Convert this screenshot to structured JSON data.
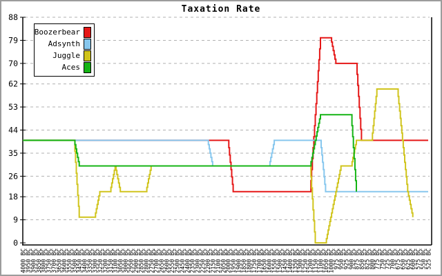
{
  "title": "Taxation Rate",
  "colors": {
    "grid": "#b0b0b0",
    "axis": "#000000",
    "background": "#ffffff",
    "frame_border": "#9c9c9c"
  },
  "chart_data": {
    "type": "line",
    "title": "Taxation Rate",
    "xlabel": "",
    "ylabel": "",
    "ylim": [
      0,
      88
    ],
    "yticks": [
      0,
      9,
      18,
      26,
      35,
      44,
      53,
      62,
      70,
      79,
      88
    ],
    "grid": true,
    "legend_position": "top-left",
    "categories": [
      "4000 BC",
      "3950 BC",
      "3900 BC",
      "3850 BC",
      "3800 BC",
      "3750 BC",
      "3700 BC",
      "3650 BC",
      "3600 BC",
      "3550 BC",
      "3500 BC",
      "3450 BC",
      "3400 BC",
      "3350 BC",
      "3300 BC",
      "3250 BC",
      "3200 BC",
      "3150 BC",
      "3100 BC",
      "3050 BC",
      "3000 BC",
      "2950 BC",
      "2900 BC",
      "2850 BC",
      "2800 BC",
      "2750 BC",
      "2700 BC",
      "2650 BC",
      "2600 BC",
      "2550 BC",
      "2500 BC",
      "2450 BC",
      "2400 BC",
      "2350 BC",
      "2300 BC",
      "2250 BC",
      "2200 BC",
      "2150 BC",
      "2100 BC",
      "2050 BC",
      "2000 BC",
      "1950 BC",
      "1900 BC",
      "1850 BC",
      "1800 BC",
      "1750 BC",
      "1700 BC",
      "1650 BC",
      "1600 BC",
      "1550 BC",
      "1500 BC",
      "1450 BC",
      "1400 BC",
      "1350 BC",
      "1300 BC",
      "1250 BC",
      "1200 BC",
      "1150 BC",
      "1100 BC",
      "1050 BC",
      "1000 BC",
      "975 BC",
      "950 BC",
      "925 BC",
      "900 BC",
      "875 BC",
      "850 BC",
      "825 BC",
      "800 BC",
      "775 BC",
      "750 BC",
      "725 BC",
      "700 BC",
      "675 BC",
      "650 BC",
      "625 BC",
      "600 BC",
      "575 BC",
      "550 BC",
      "525 BC"
    ],
    "series": [
      {
        "name": "Boozerbear",
        "color": "#e51717",
        "values": [
          40,
          40,
          40,
          40,
          40,
          40,
          40,
          40,
          40,
          40,
          40,
          40,
          40,
          40,
          40,
          40,
          40,
          40,
          40,
          40,
          40,
          40,
          40,
          40,
          40,
          40,
          40,
          40,
          40,
          40,
          40,
          40,
          40,
          40,
          40,
          40,
          40,
          40,
          40,
          40,
          40,
          20,
          20,
          20,
          20,
          20,
          20,
          20,
          20,
          20,
          20,
          20,
          20,
          20,
          20,
          20,
          20,
          50,
          80,
          80,
          80,
          70,
          70,
          70,
          70,
          70,
          40,
          40,
          40,
          40,
          40,
          40,
          40,
          40,
          40,
          40,
          40,
          40,
          40,
          40
        ]
      },
      {
        "name": "Adsynth",
        "color": "#87c7ee",
        "values": [
          40,
          40,
          40,
          40,
          40,
          40,
          40,
          40,
          40,
          40,
          40,
          40,
          40,
          40,
          40,
          40,
          40,
          40,
          40,
          40,
          40,
          40,
          40,
          40,
          40,
          40,
          40,
          40,
          40,
          40,
          40,
          40,
          40,
          40,
          40,
          40,
          40,
          30,
          30,
          30,
          30,
          30,
          30,
          30,
          30,
          30,
          30,
          30,
          30,
          40,
          40,
          40,
          40,
          40,
          40,
          40,
          40,
          40,
          40,
          20,
          20,
          20,
          20,
          20,
          20,
          20,
          20,
          20,
          20,
          20,
          20,
          20,
          20,
          20,
          20,
          20,
          20,
          20,
          20,
          20
        ]
      },
      {
        "name": "Juggle",
        "color": "#d0c41c",
        "values": [
          40,
          40,
          40,
          40,
          40,
          40,
          40,
          40,
          40,
          40,
          40,
          10,
          10,
          10,
          10,
          20,
          20,
          20,
          30,
          20,
          20,
          20,
          20,
          20,
          20,
          30,
          30,
          30,
          30,
          30,
          30,
          30,
          30,
          30,
          30,
          30,
          30,
          30,
          30,
          30,
          30,
          30,
          30,
          30,
          30,
          30,
          30,
          30,
          30,
          30,
          30,
          30,
          30,
          30,
          30,
          30,
          30,
          0,
          0,
          0,
          10,
          20,
          30,
          30,
          30,
          40,
          40,
          40,
          40,
          60,
          60,
          60,
          60,
          60,
          40,
          20,
          10,
          null,
          null,
          null
        ]
      },
      {
        "name": "Aces",
        "color": "#15b415",
        "values": [
          40,
          40,
          40,
          40,
          40,
          40,
          40,
          40,
          40,
          40,
          40,
          30,
          30,
          30,
          30,
          30,
          30,
          30,
          30,
          30,
          30,
          30,
          30,
          30,
          30,
          30,
          30,
          30,
          30,
          30,
          30,
          30,
          30,
          30,
          30,
          30,
          30,
          30,
          30,
          30,
          30,
          30,
          30,
          30,
          30,
          30,
          30,
          30,
          30,
          30,
          30,
          30,
          30,
          30,
          30,
          30,
          30,
          40,
          50,
          50,
          50,
          50,
          50,
          50,
          50,
          20,
          null,
          null,
          null,
          null,
          null,
          null,
          null,
          null,
          null,
          null,
          null,
          null,
          null,
          null
        ]
      }
    ]
  }
}
